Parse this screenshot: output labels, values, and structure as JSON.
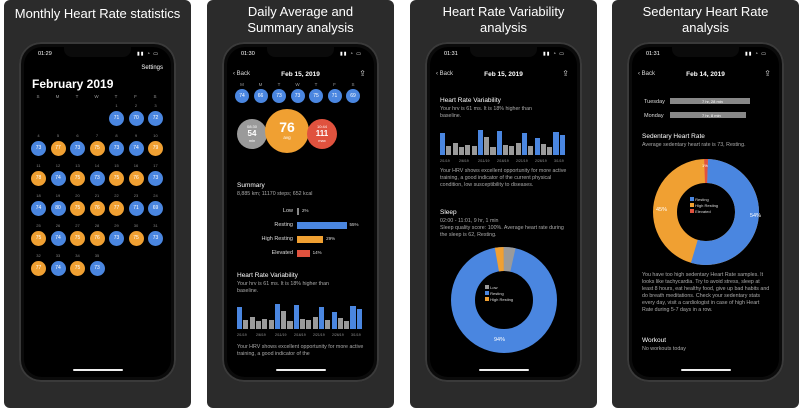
{
  "panels": [
    {
      "title": "Monthly Heart Rate statistics"
    },
    {
      "title": "Daily Average and Summary analysis"
    },
    {
      "title": "Heart Rate Variability analysis"
    },
    {
      "title": "Sedentary Heart Rate analysis"
    }
  ],
  "colors": {
    "blue": "#4a86e0",
    "orange": "#f0a032",
    "red": "#e0523e",
    "gray": "#888888"
  },
  "s1": {
    "time": "01:29",
    "settings": "Settings",
    "month": "February 2019",
    "weekdays": [
      "S",
      "M",
      "T",
      "W",
      "T",
      "F",
      "S"
    ],
    "days": [
      {
        "v": "71",
        "c": "blue"
      },
      {
        "v": "70",
        "c": "blue"
      },
      {
        "v": "72",
        "c": "blue"
      },
      {
        "v": "73",
        "c": "blue"
      },
      {
        "v": "77",
        "c": "orange"
      },
      {
        "v": "73",
        "c": "blue"
      },
      {
        "v": "75",
        "c": "orange"
      },
      {
        "v": "73",
        "c": "blue"
      },
      {
        "v": "74",
        "c": "blue"
      },
      {
        "v": "79",
        "c": "orange"
      },
      {
        "v": "78",
        "c": "orange"
      },
      {
        "v": "74",
        "c": "blue"
      },
      {
        "v": "75",
        "c": "orange"
      },
      {
        "v": "73",
        "c": "blue"
      },
      {
        "v": "75",
        "c": "orange"
      },
      {
        "v": "76",
        "c": "orange"
      },
      {
        "v": "73",
        "c": "blue"
      },
      {
        "v": "74",
        "c": "blue"
      },
      {
        "v": "80",
        "c": "blue"
      },
      {
        "v": "75",
        "c": "orange"
      },
      {
        "v": "76",
        "c": "orange"
      },
      {
        "v": "77",
        "c": "orange"
      },
      {
        "v": "71",
        "c": "blue"
      },
      {
        "v": "69",
        "c": "blue"
      },
      {
        "v": "75",
        "c": "orange"
      },
      {
        "v": "74",
        "c": "blue"
      },
      {
        "v": "75",
        "c": "orange"
      },
      {
        "v": "76",
        "c": "orange"
      },
      {
        "v": "73",
        "c": "blue"
      },
      {
        "v": "75",
        "c": "orange"
      },
      {
        "v": "73",
        "c": "blue"
      },
      {
        "v": "77",
        "c": "orange"
      },
      {
        "v": "74",
        "c": "blue"
      },
      {
        "v": "75",
        "c": "orange"
      },
      {
        "v": "73",
        "c": "blue"
      }
    ]
  },
  "s2": {
    "time": "01:30",
    "back": "Back",
    "date": "Feb 15, 2019",
    "hours": [
      "M",
      "M",
      "T",
      "W",
      "T",
      "F",
      "S"
    ],
    "top_row": [
      "74",
      "66",
      "73",
      "73",
      "75",
      "71",
      "69"
    ],
    "bubbles": {
      "min_value": "54",
      "min_label": "min",
      "min_pre": "08:30",
      "avg_value": "76",
      "avg_label": "avg",
      "max_value": "111",
      "max_label": "max",
      "max_pre": "10:44"
    },
    "summary_title": "Summary",
    "summary_text": "8,885 km; 11170 steps; 652 kcal",
    "zones": [
      {
        "name": "Low",
        "pct": 2,
        "label": "2%",
        "color": "#888888"
      },
      {
        "name": "Resting",
        "pct": 55,
        "label": "55%",
        "color": "#4a86e0"
      },
      {
        "name": "High Resting",
        "pct": 29,
        "label": "29%",
        "color": "#f0a032"
      },
      {
        "name": "Elevated",
        "pct": 14,
        "label": "14%",
        "color": "#e0523e"
      }
    ],
    "hrv_title": "Heart Rate Variability",
    "hrv_text": "Your hrv is 61 ms. It is 18% higher than baseline.",
    "hrv_dates": [
      "2/1/19",
      "2/6/19",
      "2/11/19",
      "2/16/19",
      "2/21/19",
      "2/26/19",
      "3/1/19"
    ],
    "hrv_bottom": "Your HRV shows excellent opportunity for more active training, a good indicator of the"
  },
  "s3": {
    "time": "01:31",
    "back": "Back",
    "date": "Feb 15, 2019",
    "hrv_title": "Heart Rate Variability",
    "hrv_text": "Your hrv is 61 ms. It is 18% higher than baseline.",
    "hrv_dates": [
      "2/1/19",
      "2/6/19",
      "2/11/19",
      "2/16/19",
      "2/21/19",
      "2/26/19",
      "3/1/19"
    ],
    "hrv_desc": "Your HRV shows excellent opportunity for more active training, a good indicator of the current physical condition, low susceptibility to diseases.",
    "sleep_title": "Sleep",
    "sleep_time": "02:00 - 11:01, 9 hr, 1 min",
    "sleep_text": "Sleep quality score: 100%. Average heart rate during the sleep is 62, Resting.",
    "sleep_legend": [
      "Low",
      "Resting",
      "High Resting"
    ],
    "sleep_pct": "94%"
  },
  "s4": {
    "time": "01:31",
    "back": "Back",
    "date": "Feb 14, 2019",
    "days": [
      {
        "name": "Tuesday",
        "value": "7 hr, 28 min"
      },
      {
        "name": "Monday",
        "value": "7 hr, 8 min"
      }
    ],
    "sed_title": "Sedentary Heart Rate",
    "sed_text": "Average sedentary heart rate is 73, Resting.",
    "legend": [
      "Resting",
      "High Resting",
      "Elevated"
    ],
    "pct_left": "45%",
    "pct_right": "54%",
    "pct_top": "1%",
    "advice": "You have too high sedentary Heart Rate samples. It looks like tachycardia. Try to avoid stress, sleep at least 8 hours, eat healthy food, give up bad habits and do breath meditations. Check your sedentary stats every day, visit a cardiologist in case of high Heart Rate during 5-7 days in a row.",
    "workout_title": "Workout",
    "workout_text": "No workouts today"
  }
}
